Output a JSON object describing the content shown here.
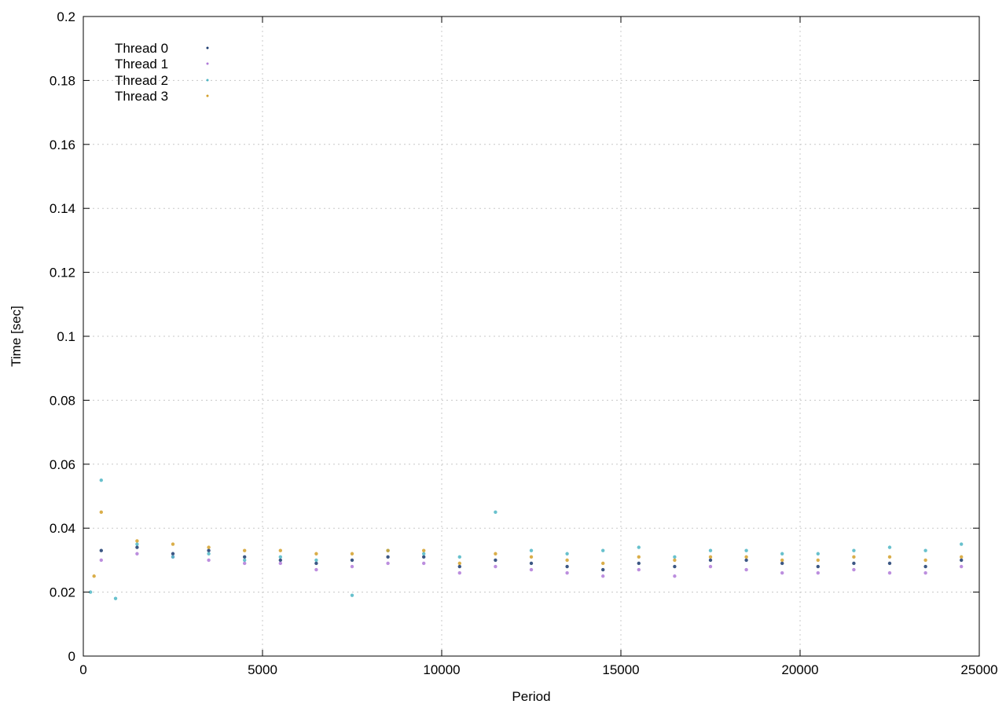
{
  "chart_data": {
    "type": "scatter",
    "title": "",
    "xlabel": "Period",
    "ylabel": "Time [sec]",
    "xlim": [
      0,
      25000
    ],
    "ylim": [
      0,
      0.2
    ],
    "xticks": [
      0,
      5000,
      10000,
      15000,
      20000,
      25000
    ],
    "xtick_labels": [
      "0",
      "5000",
      "10000",
      "15000",
      "20000",
      "25000"
    ],
    "yticks": [
      0,
      0.02,
      0.04,
      0.06,
      0.08,
      0.1,
      0.12,
      0.14,
      0.16,
      0.18,
      0.2
    ],
    "ytick_labels": [
      "0",
      "0.02",
      "0.04",
      "0.06",
      "0.08",
      "0.1",
      "0.12",
      "0.14",
      "0.16",
      "0.18",
      "0.2"
    ],
    "grid": true,
    "legend_position": "top-left",
    "series": [
      {
        "name": "Thread 0",
        "color": "#1a3a6e",
        "points": [
          [
            500,
            0.033
          ],
          [
            1500,
            0.034
          ],
          [
            2500,
            0.032
          ],
          [
            3500,
            0.033
          ],
          [
            4500,
            0.031
          ],
          [
            5500,
            0.03
          ],
          [
            6500,
            0.029
          ],
          [
            7500,
            0.03
          ],
          [
            8500,
            0.031
          ],
          [
            9500,
            0.031
          ],
          [
            10500,
            0.028
          ],
          [
            11500,
            0.03
          ],
          [
            12500,
            0.029
          ],
          [
            13500,
            0.028
          ],
          [
            14500,
            0.027
          ],
          [
            15500,
            0.029
          ],
          [
            16500,
            0.028
          ],
          [
            17500,
            0.03
          ],
          [
            18500,
            0.03
          ],
          [
            19500,
            0.029
          ],
          [
            20500,
            0.028
          ],
          [
            21500,
            0.029
          ],
          [
            22500,
            0.029
          ],
          [
            23500,
            0.028
          ],
          [
            24500,
            0.03
          ]
        ]
      },
      {
        "name": "Thread 1",
        "color": "#b07ad8",
        "points": [
          [
            500,
            0.03
          ],
          [
            1500,
            0.032
          ],
          [
            2500,
            0.031
          ],
          [
            3500,
            0.03
          ],
          [
            4500,
            0.029
          ],
          [
            5500,
            0.029
          ],
          [
            6500,
            0.027
          ],
          [
            7500,
            0.028
          ],
          [
            8500,
            0.029
          ],
          [
            9500,
            0.029
          ],
          [
            10500,
            0.026
          ],
          [
            11500,
            0.028
          ],
          [
            12500,
            0.027
          ],
          [
            13500,
            0.026
          ],
          [
            14500,
            0.025
          ],
          [
            15500,
            0.027
          ],
          [
            16500,
            0.025
          ],
          [
            17500,
            0.028
          ],
          [
            18500,
            0.027
          ],
          [
            19500,
            0.026
          ],
          [
            20500,
            0.026
          ],
          [
            21500,
            0.027
          ],
          [
            22500,
            0.026
          ],
          [
            23500,
            0.026
          ],
          [
            24500,
            0.028
          ]
        ]
      },
      {
        "name": "Thread 2",
        "color": "#4db6c4",
        "points": [
          [
            200,
            0.02
          ],
          [
            500,
            0.055
          ],
          [
            900,
            0.018
          ],
          [
            1500,
            0.035
          ],
          [
            2500,
            0.031
          ],
          [
            3500,
            0.032
          ],
          [
            4500,
            0.03
          ],
          [
            5500,
            0.031
          ],
          [
            6500,
            0.03
          ],
          [
            7500,
            0.019
          ],
          [
            8500,
            0.033
          ],
          [
            9500,
            0.032
          ],
          [
            10500,
            0.031
          ],
          [
            11500,
            0.045
          ],
          [
            12500,
            0.033
          ],
          [
            13500,
            0.032
          ],
          [
            14500,
            0.033
          ],
          [
            15500,
            0.034
          ],
          [
            16500,
            0.031
          ],
          [
            17500,
            0.033
          ],
          [
            18500,
            0.033
          ],
          [
            19500,
            0.032
          ],
          [
            20500,
            0.032
          ],
          [
            21500,
            0.033
          ],
          [
            22500,
            0.034
          ],
          [
            23500,
            0.033
          ],
          [
            24500,
            0.035
          ]
        ]
      },
      {
        "name": "Thread 3",
        "color": "#d4a02a",
        "points": [
          [
            300,
            0.025
          ],
          [
            500,
            0.045
          ],
          [
            1500,
            0.036
          ],
          [
            2500,
            0.035
          ],
          [
            3500,
            0.034
          ],
          [
            4500,
            0.033
          ],
          [
            5500,
            0.033
          ],
          [
            6500,
            0.032
          ],
          [
            7500,
            0.032
          ],
          [
            8500,
            0.033
          ],
          [
            9500,
            0.033
          ],
          [
            10500,
            0.029
          ],
          [
            11500,
            0.032
          ],
          [
            12500,
            0.031
          ],
          [
            13500,
            0.03
          ],
          [
            14500,
            0.029
          ],
          [
            15500,
            0.031
          ],
          [
            16500,
            0.03
          ],
          [
            17500,
            0.031
          ],
          [
            18500,
            0.031
          ],
          [
            19500,
            0.03
          ],
          [
            20500,
            0.03
          ],
          [
            21500,
            0.031
          ],
          [
            22500,
            0.031
          ],
          [
            23500,
            0.03
          ],
          [
            24500,
            0.031
          ]
        ]
      }
    ]
  }
}
